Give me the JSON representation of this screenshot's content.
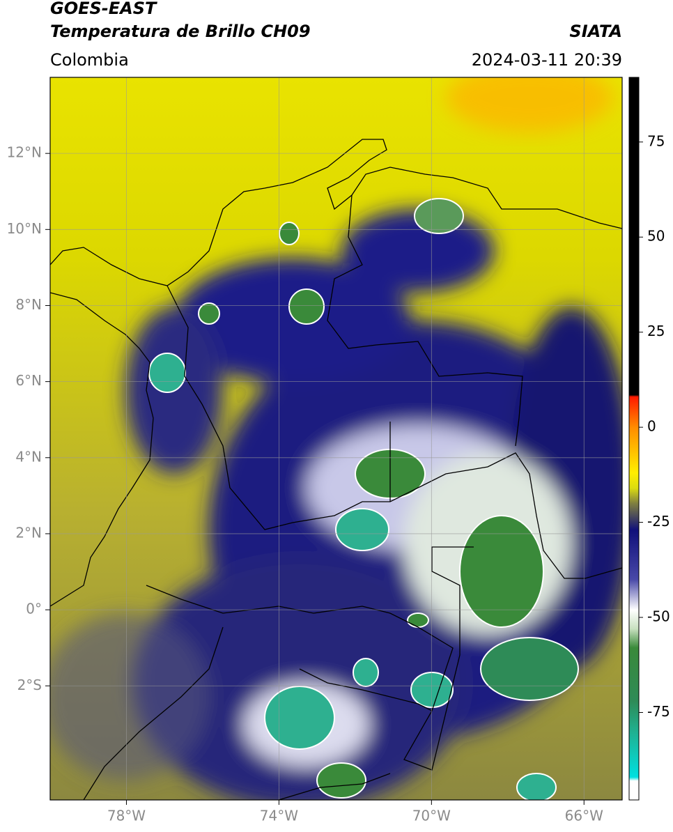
{
  "header": {
    "title": "GOES-EAST",
    "subtitle": "Temperatura de Brillo CH09",
    "region": "Colombia",
    "source": "SIATA",
    "datetime": "2024-03-11 20:39"
  },
  "map": {
    "xlim": [
      -80,
      -65
    ],
    "ylim": [
      -5,
      14
    ],
    "grid": true,
    "xticks": [
      {
        "value": -78,
        "label": "78°W"
      },
      {
        "value": -74,
        "label": "74°W"
      },
      {
        "value": -70,
        "label": "70°W"
      },
      {
        "value": -66,
        "label": "66°W"
      }
    ],
    "yticks": [
      {
        "value": 12,
        "label": "12°N"
      },
      {
        "value": 10,
        "label": "10°N"
      },
      {
        "value": 8,
        "label": "8°N"
      },
      {
        "value": 6,
        "label": "6°N"
      },
      {
        "value": 4,
        "label": "4°N"
      },
      {
        "value": 2,
        "label": "2°N"
      },
      {
        "value": 0,
        "label": "0°"
      },
      {
        "value": -2,
        "label": "2°S"
      }
    ]
  },
  "colorbar": {
    "lim": [
      -98,
      92
    ],
    "ticks": [
      75,
      50,
      25,
      0,
      -25,
      -50,
      -75
    ],
    "stops": [
      {
        "value": 92,
        "color": "#000000"
      },
      {
        "value": 8.5,
        "color": "#000000"
      },
      {
        "value": 8,
        "color": "#ff1a00"
      },
      {
        "value": 0,
        "color": "#ff8c00"
      },
      {
        "value": -12,
        "color": "#ffee00"
      },
      {
        "value": -16,
        "color": "#dcdc10"
      },
      {
        "value": -20,
        "color": "#808040"
      },
      {
        "value": -24,
        "color": "#404060"
      },
      {
        "value": -27,
        "color": "#10107a"
      },
      {
        "value": -40,
        "color": "#4848a8"
      },
      {
        "value": -48,
        "color": "#ffffff"
      },
      {
        "value": -53,
        "color": "#c8e0c0"
      },
      {
        "value": -58,
        "color": "#3a8a3a"
      },
      {
        "value": -72,
        "color": "#2e8b57"
      },
      {
        "value": -80,
        "color": "#20b090"
      },
      {
        "value": -92,
        "color": "#00e0e0"
      },
      {
        "value": -93,
        "color": "#ffffff"
      },
      {
        "value": -98,
        "color": "#ffffff"
      }
    ]
  }
}
